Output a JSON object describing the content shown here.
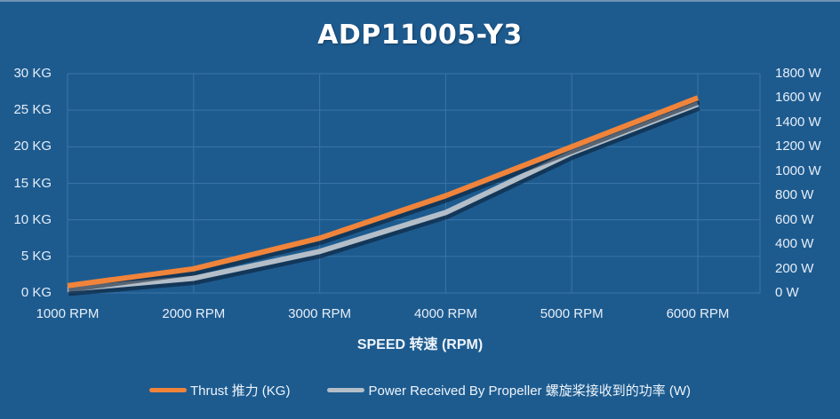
{
  "chart_data": {
    "type": "line",
    "title": "ADP11005-Y3",
    "xlabel": "SPEED 转速 (RPM)",
    "ylabel_left": "",
    "ylabel_right": "",
    "categories": [
      "1000 RPM",
      "2000 RPM",
      "3000 RPM",
      "4000 RPM",
      "5000 RPM",
      "6000 RPM"
    ],
    "x": [
      1000,
      2000,
      3000,
      4000,
      5000,
      6000
    ],
    "series": [
      {
        "name": "Thrust 推力 (KG)",
        "axis": "left",
        "color": "#f0843a",
        "values": [
          1.0,
          3.3,
          7.5,
          13.3,
          20.0,
          26.7
        ]
      },
      {
        "name": "Power Received By Propeller 螺旋桨接收到的功率 (W)",
        "axis": "right",
        "color": "#b4bec8",
        "values": [
          30,
          120,
          340,
          660,
          1150,
          1550
        ]
      }
    ],
    "y_left": {
      "ticks": [
        "0 KG",
        "5 KG",
        "10 KG",
        "15 KG",
        "20 KG",
        "25 KG",
        "30 KG"
      ],
      "range": [
        0,
        30
      ]
    },
    "y_right": {
      "ticks": [
        "0 W",
        "200 W",
        "400 W",
        "600 W",
        "800 W",
        "1000 W",
        "1200 W",
        "1400 W",
        "1600 W",
        "1800 W"
      ],
      "range": [
        0,
        1800
      ]
    },
    "grid": true,
    "legend_position": "bottom"
  },
  "colors": {
    "background": "#1d5b8f",
    "grid": "#3a74a6",
    "thrust": "#f0843a",
    "power": "#b4bec8"
  }
}
